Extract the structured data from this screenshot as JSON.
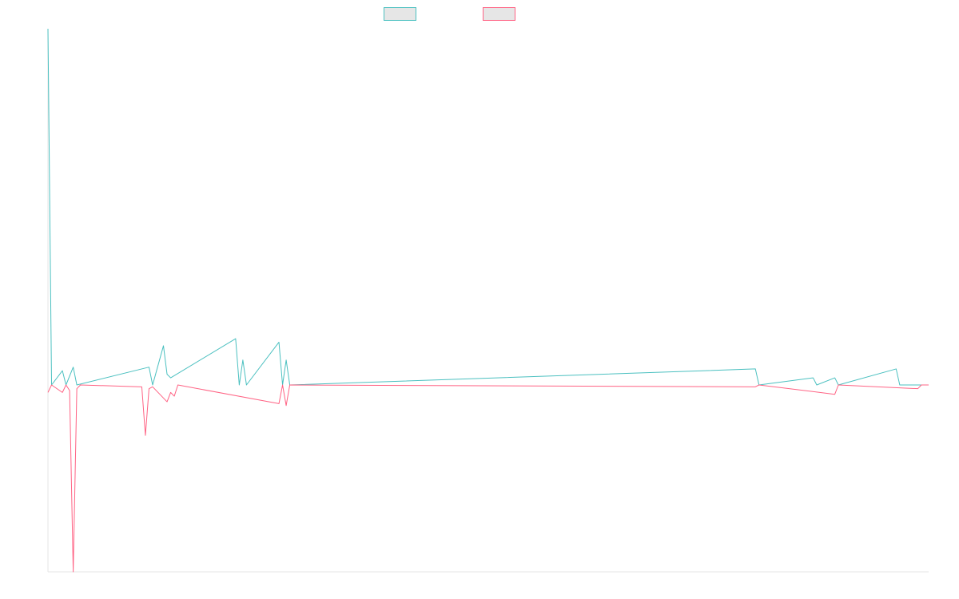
{
  "chart_data": {
    "type": "line",
    "title": "",
    "xlabel": "",
    "ylabel": "",
    "legend_position": "top-center",
    "grid": false,
    "ylim": [
      -1,
      1
    ],
    "x_count": 245,
    "series": [
      {
        "color": "#4bc0c0",
        "fill": "#e6e6e6",
        "points": [
          [
            0,
            1.0
          ],
          [
            1,
            0.0
          ],
          [
            4,
            0.04
          ],
          [
            5,
            0.0
          ],
          [
            7,
            0.05
          ],
          [
            8,
            0.0
          ],
          [
            28,
            0.05
          ],
          [
            29,
            0.0
          ],
          [
            32,
            0.11
          ],
          [
            33,
            0.03
          ],
          [
            34,
            0.02
          ],
          [
            52,
            0.13
          ],
          [
            53,
            0.0
          ],
          [
            54,
            0.07
          ],
          [
            55,
            0.0
          ],
          [
            64,
            0.12
          ],
          [
            65,
            0.0
          ],
          [
            66,
            0.07
          ],
          [
            67,
            0.0
          ],
          [
            196,
            0.045
          ],
          [
            197,
            0.0
          ],
          [
            212,
            0.02
          ],
          [
            213,
            0.0
          ],
          [
            218,
            0.02
          ],
          [
            219,
            0.0
          ],
          [
            235,
            0.045
          ],
          [
            236,
            0.0
          ],
          [
            244,
            0.0
          ]
        ]
      },
      {
        "color": "#ff6384",
        "fill": "#e6e6e6",
        "points": [
          [
            0,
            -0.04
          ],
          [
            1,
            0.0
          ],
          [
            4,
            -0.04
          ],
          [
            5,
            0.0
          ],
          [
            6,
            -0.03
          ],
          [
            7,
            -1.0
          ],
          [
            8,
            -0.02
          ],
          [
            9,
            0.0
          ],
          [
            26,
            -0.01
          ],
          [
            27,
            -0.27
          ],
          [
            28,
            -0.02
          ],
          [
            29,
            -0.01
          ],
          [
            33,
            -0.09
          ],
          [
            34,
            -0.04
          ],
          [
            35,
            -0.06
          ],
          [
            36,
            0.0
          ],
          [
            64,
            -0.1
          ],
          [
            65,
            0.0
          ],
          [
            66,
            -0.11
          ],
          [
            67,
            0.0
          ],
          [
            196,
            -0.01
          ],
          [
            197,
            0.0
          ],
          [
            218,
            -0.05
          ],
          [
            219,
            0.0
          ],
          [
            241,
            -0.02
          ],
          [
            242,
            0.0
          ],
          [
            244,
            0.0
          ]
        ]
      }
    ]
  }
}
